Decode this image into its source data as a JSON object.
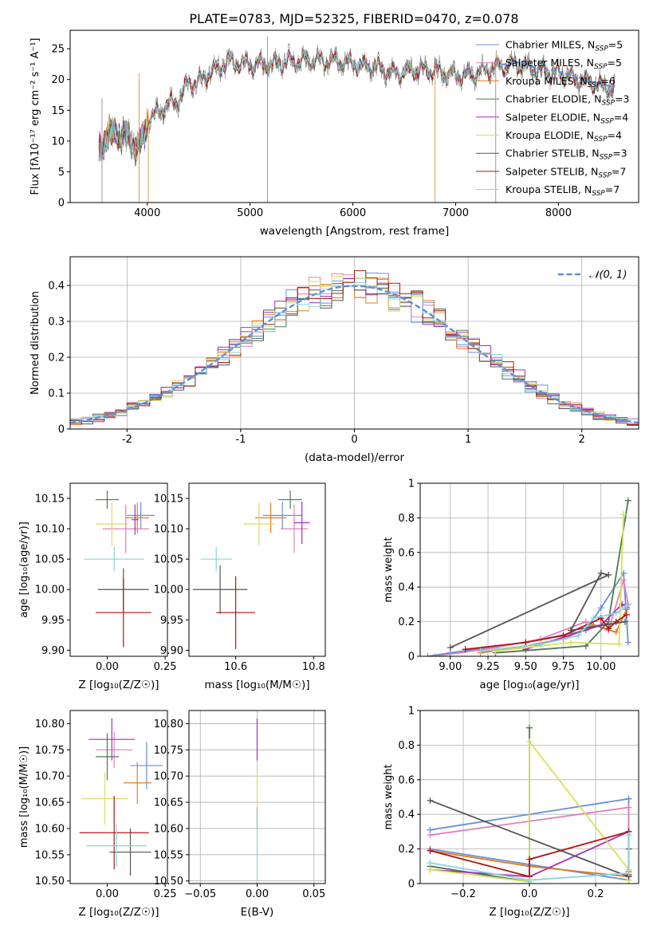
{
  "figure_title": "PLATE=0783, MJD=52325, FIBERID=0470, z=0.078",
  "colors": {
    "chabrier_miles": "#6a8fd8",
    "salpeter_miles": "#e07fb8",
    "kroupa_miles": "#e37d1e",
    "chabrier_elodie": "#4f7a50",
    "salpeter_elodie": "#a62fbe",
    "kroupa_elodie": "#d9e05a",
    "chabrier_stelib": "#555555",
    "salpeter_stelib": "#b01515",
    "kroupa_stelib": "#88d5dd",
    "data_spectrum": "#808080",
    "normal_curve": "#5f8fd8"
  },
  "chart_data": [
    {
      "id": "spectrum",
      "type": "line",
      "title": "PLATE=0783, MJD=52325, FIBERID=0470, z=0.078",
      "xlabel": "wavelength [Angstrom, rest frame]",
      "ylabel": "Flux [fλ10⁻¹⁷ erg cm⁻² s⁻¹ A⁻¹]",
      "xlim": [
        3250,
        8780
      ],
      "ylim": [
        0,
        28
      ],
      "xticks": [
        4000,
        5000,
        6000,
        7000,
        8000
      ],
      "yticks": [
        0,
        5,
        10,
        15,
        20,
        25
      ],
      "legend_position": "top-right",
      "legend": [
        "Chabrier MILES, NSSP=5",
        "Salpeter MILES, NSSP=5",
        "Kroupa MILES, NSSP=6",
        "Chabrier ELODIE, NSSP=3",
        "Salpeter ELODIE, NSSP=4",
        "Kroupa ELODIE, NSSP=4",
        "Chabrier STELIB, NSSP=3",
        "Salpeter STELIB, NSSP=7",
        "Kroupa STELIB, NSSP=7"
      ],
      "continuum": {
        "x": [
          3530,
          3600,
          3700,
          3800,
          3900,
          3950,
          4000,
          4100,
          4200,
          4300,
          4400,
          4500,
          4600,
          4700,
          4800,
          4900,
          5000,
          5200,
          5400,
          5600,
          5800,
          6000,
          6200,
          6400,
          6600,
          6800,
          7000,
          7200,
          7400,
          7600,
          7800,
          8000,
          8200,
          8400,
          8550
        ],
        "y": [
          8.5,
          10.5,
          11.5,
          10.5,
          9.0,
          10.0,
          13.5,
          14.5,
          16.0,
          16.5,
          19.5,
          19.5,
          21.0,
          22.0,
          23.0,
          22.5,
          22.5,
          22.5,
          23.0,
          23.0,
          23.0,
          22.5,
          22.0,
          21.0,
          21.5,
          21.5,
          20.5,
          21.0,
          22.0,
          22.5,
          21.5,
          21.0,
          20.0,
          19.0,
          18.5
        ]
      }
    },
    {
      "id": "residuals",
      "type": "step",
      "xlabel": "(data-model)/error",
      "ylabel": "Normed distribution",
      "xlim": [
        -2.5,
        2.5
      ],
      "ylim": [
        0,
        0.48
      ],
      "xticks": [
        -2,
        -1,
        0,
        1,
        2
      ],
      "yticks": [
        0.0,
        0.1,
        0.2,
        0.3,
        0.4
      ],
      "legend_position": "top-right",
      "legend": [
        "𝒩(0, 1)"
      ],
      "grid": true,
      "bin_width": 0.1
    },
    {
      "id": "age_vs_Z",
      "type": "errorbar",
      "xlabel": "Z [log₁₀(Z/Z☉)]",
      "ylabel": "age  [log₁₀(age/yr)]",
      "xlim": [
        -0.16,
        0.26
      ],
      "ylim": [
        9.89,
        10.175
      ],
      "xticks": [
        0.0,
        0.25
      ],
      "xticklabels": [
        "0.00",
        "0.25"
      ],
      "yticks": [
        9.9,
        9.95,
        10.0,
        10.05,
        10.1,
        10.15
      ],
      "yticklabels": [
        "9.90",
        "9.95",
        "10.00",
        "10.05",
        "10.10",
        "10.15"
      ],
      "points": [
        {
          "model": "chabrier_miles",
          "x": 0.145,
          "xerr": 0.06,
          "y": 10.122,
          "yerr": 0.022
        },
        {
          "model": "salpeter_miles",
          "x": 0.08,
          "xerr": 0.1,
          "y": 10.1,
          "yerr": 0.04
        },
        {
          "model": "kroupa_miles",
          "x": 0.13,
          "xerr": 0.05,
          "y": 10.118,
          "yerr": 0.025
        },
        {
          "model": "chabrier_elodie",
          "x": 0.0,
          "xerr": 0.05,
          "y": 10.148,
          "yerr": 0.015
        },
        {
          "model": "salpeter_elodie",
          "x": 0.12,
          "xerr": 0.015,
          "y": 10.115,
          "yerr": 0.025
        },
        {
          "model": "kroupa_elodie",
          "x": 0.02,
          "xerr": 0.07,
          "y": 10.108,
          "yerr": 0.035
        },
        {
          "model": "chabrier_stelib",
          "x": 0.07,
          "xerr": 0.11,
          "y": 10.0,
          "yerr": 0.035
        },
        {
          "model": "salpeter_stelib",
          "x": 0.07,
          "xerr": 0.12,
          "y": 9.962,
          "yerr": 0.057
        },
        {
          "model": "kroupa_stelib",
          "x": 0.03,
          "xerr": 0.13,
          "y": 10.05,
          "yerr": 0.02
        }
      ]
    },
    {
      "id": "age_vs_mass",
      "type": "errorbar",
      "xlabel": "mass [log₁₀(M/M☉)]",
      "xlim": [
        10.48,
        10.83
      ],
      "ylim": [
        9.89,
        10.175
      ],
      "xticks": [
        10.6,
        10.8
      ],
      "xticklabels": [
        "10.6",
        "10.8"
      ],
      "yticks": [
        9.9,
        9.95,
        10.0,
        10.05,
        10.1,
        10.15
      ],
      "yticklabels": [
        "9.90",
        "9.95",
        "10.00",
        "10.05",
        "10.10",
        "10.15"
      ],
      "points": [
        {
          "model": "chabrier_miles",
          "x": 10.72,
          "xerr": 0.05,
          "y": 10.122,
          "yerr": 0.022
        },
        {
          "model": "salpeter_miles",
          "x": 10.75,
          "xerr": 0.035,
          "y": 10.1,
          "yerr": 0.04
        },
        {
          "model": "kroupa_miles",
          "x": 10.69,
          "xerr": 0.04,
          "y": 10.118,
          "yerr": 0.025
        },
        {
          "model": "chabrier_elodie",
          "x": 10.74,
          "xerr": 0.03,
          "y": 10.148,
          "yerr": 0.015
        },
        {
          "model": "salpeter_elodie",
          "x": 10.77,
          "xerr": 0.02,
          "y": 10.11,
          "yerr": 0.035
        },
        {
          "model": "kroupa_elodie",
          "x": 10.66,
          "xerr": 0.04,
          "y": 10.108,
          "yerr": 0.035
        },
        {
          "model": "chabrier_stelib",
          "x": 10.56,
          "xerr": 0.07,
          "y": 10.0,
          "yerr": 0.04
        },
        {
          "model": "salpeter_stelib",
          "x": 10.6,
          "xerr": 0.05,
          "y": 9.962,
          "yerr": 0.06
        },
        {
          "model": "kroupa_stelib",
          "x": 10.55,
          "xerr": 0.04,
          "y": 10.05,
          "yerr": 0.02
        }
      ]
    },
    {
      "id": "weight_vs_age",
      "type": "line",
      "xlabel": "age  [log₁₀(age/yr)]",
      "ylabel": "mass weight",
      "xlim": [
        8.8,
        10.25
      ],
      "ylim": [
        0,
        1.0
      ],
      "xticks": [
        9.0,
        9.25,
        9.5,
        9.75,
        10.0
      ],
      "xticklabels": [
        "9.00",
        "9.25",
        "9.50",
        "9.75",
        "10.00"
      ],
      "yticks": [
        0.0,
        0.2,
        0.4,
        0.6,
        0.8,
        1.0
      ],
      "grid": true,
      "series": [
        {
          "model": "chabrier_miles",
          "x": [
            8.85,
            9.0,
            9.5,
            9.9,
            10.0,
            10.15,
            10.18
          ],
          "y": [
            0.0,
            0.02,
            0.08,
            0.15,
            0.28,
            0.48,
            0.08
          ]
        },
        {
          "model": "salpeter_miles",
          "x": [
            8.9,
            9.3,
            9.6,
            9.9,
            10.05,
            10.15,
            10.18
          ],
          "y": [
            0.0,
            0.05,
            0.1,
            0.2,
            0.15,
            0.44,
            0.3
          ]
        },
        {
          "model": "kroupa_miles",
          "x": [
            9.2,
            9.5,
            9.75,
            9.95,
            10.1,
            10.17
          ],
          "y": [
            0.02,
            0.06,
            0.1,
            0.18,
            0.14,
            0.27
          ]
        },
        {
          "model": "chabrier_elodie",
          "x": [
            9.3,
            9.9,
            10.05,
            10.18
          ],
          "y": [
            0.02,
            0.06,
            0.2,
            0.9
          ]
        },
        {
          "model": "salpeter_elodie",
          "x": [
            9.5,
            10.0,
            10.14,
            10.17
          ],
          "y": [
            0.04,
            0.18,
            0.3,
            0.28
          ]
        },
        {
          "model": "kroupa_elodie",
          "x": [
            9.3,
            9.8,
            10.12,
            10.15
          ],
          "y": [
            0.03,
            0.08,
            0.07,
            0.82
          ]
        },
        {
          "model": "chabrier_stelib",
          "x": [
            9.0,
            10.05,
            10.0,
            9.8,
            10.16
          ],
          "y": [
            0.05,
            0.47,
            0.48,
            0.15,
            0.2
          ]
        },
        {
          "model": "salpeter_stelib",
          "x": [
            9.1,
            9.5,
            9.75,
            10.0,
            10.05,
            10.1,
            10.17
          ],
          "y": [
            0.04,
            0.08,
            0.12,
            0.22,
            0.16,
            0.2,
            0.24
          ]
        },
        {
          "model": "kroupa_stelib",
          "x": [
            9.2,
            9.6,
            9.85,
            9.95,
            10.1,
            10.17
          ],
          "y": [
            0.03,
            0.07,
            0.12,
            0.22,
            0.25,
            0.29
          ]
        }
      ]
    },
    {
      "id": "mass_vs_Z",
      "type": "errorbar",
      "xlabel": "Z [log₁₀(Z/Z☉)]",
      "ylabel": "mass [log₁₀(M/M☉)]",
      "xlim": [
        -0.16,
        0.26
      ],
      "ylim": [
        10.495,
        10.825
      ],
      "xticks": [
        0.0,
        0.25
      ],
      "xticklabels": [
        "0.00",
        "0.25"
      ],
      "yticks": [
        10.5,
        10.55,
        10.6,
        10.65,
        10.7,
        10.75,
        10.8
      ],
      "yticklabels": [
        "10.50",
        "10.55",
        "10.60",
        "10.65",
        "10.70",
        "10.75",
        "10.80"
      ],
      "points": [
        {
          "model": "chabrier_miles",
          "x": 0.17,
          "xerr": 0.07,
          "y": 10.72,
          "yerr": 0.045
        },
        {
          "model": "salpeter_miles",
          "x": 0.03,
          "xerr": 0.08,
          "y": 10.75,
          "yerr": 0.035
        },
        {
          "model": "kroupa_miles",
          "x": 0.13,
          "xerr": 0.06,
          "y": 10.687,
          "yerr": 0.04
        },
        {
          "model": "chabrier_elodie",
          "x": 0.0,
          "xerr": 0.05,
          "y": 10.737,
          "yerr": 0.045
        },
        {
          "model": "salpeter_elodie",
          "x": 0.02,
          "xerr": 0.1,
          "y": 10.77,
          "yerr": 0.04
        },
        {
          "model": "kroupa_elodie",
          "x": -0.01,
          "xerr": 0.1,
          "y": 10.657,
          "yerr": 0.05
        },
        {
          "model": "chabrier_stelib",
          "x": 0.1,
          "xerr": 0.09,
          "y": 10.555,
          "yerr": 0.045
        },
        {
          "model": "salpeter_stelib",
          "x": 0.03,
          "xerr": 0.15,
          "y": 10.592,
          "yerr": 0.07
        },
        {
          "model": "kroupa_stelib",
          "x": 0.04,
          "xerr": 0.13,
          "y": 10.567,
          "yerr": 0.04
        }
      ]
    },
    {
      "id": "mass_vs_EBV",
      "type": "errorbar",
      "xlabel": "E(B-V)",
      "xlim": [
        -0.06,
        0.06
      ],
      "ylim": [
        10.495,
        10.825
      ],
      "xticks": [
        -0.05,
        0.0,
        0.05
      ],
      "xticklabels": [
        "−0.05",
        "0.00",
        "0.05"
      ],
      "yticks": [
        10.5,
        10.55,
        10.6,
        10.65,
        10.7,
        10.75,
        10.8
      ],
      "yticklabels": [
        "10.50",
        "10.55",
        "10.60",
        "10.65",
        "10.70",
        "10.75",
        "10.80"
      ],
      "grid": true,
      "points": [
        {
          "model": "salpeter_elodie",
          "x": 0.0,
          "xerr": 0.0,
          "y": 10.77,
          "yerr": 0.04
        },
        {
          "model": "kroupa_elodie",
          "x": 0.0,
          "xerr": 0.0,
          "y": 10.66,
          "yerr": 0.05
        },
        {
          "model": "salpeter_stelib",
          "x": 0.0,
          "xerr": 0.0,
          "y": 10.62,
          "yerr": 0.02
        },
        {
          "model": "kroupa_stelib",
          "x": 0.0,
          "xerr": 0.0,
          "y": 10.57,
          "yerr": 0.07
        }
      ]
    },
    {
      "id": "weight_vs_Z",
      "type": "line",
      "xlabel": "Z [log₁₀(Z/Z☉)]",
      "ylabel": "mass weight",
      "xlim": [
        -0.33,
        0.33
      ],
      "ylim": [
        0,
        1.0
      ],
      "xticks": [
        -0.2,
        0.0,
        0.2
      ],
      "xticklabels": [
        "−0.2",
        "0.0",
        "0.2"
      ],
      "yticks": [
        0.0,
        0.2,
        0.4,
        0.6,
        0.8,
        1.0
      ],
      "grid": true,
      "series": [
        {
          "model": "chabrier_miles",
          "x": [
            -0.3,
            0.3,
            0.3,
            -0.3
          ],
          "y": [
            0.31,
            0.49,
            0.02,
            0.2
          ]
        },
        {
          "model": "salpeter_miles",
          "x": [
            -0.3,
            0.3,
            0.3
          ],
          "y": [
            0.28,
            0.44,
            0.02
          ]
        },
        {
          "model": "kroupa_miles",
          "x": [
            -0.3,
            0.0,
            0.3,
            0.3
          ],
          "y": [
            0.19,
            0.1,
            0.04,
            0.07
          ]
        },
        {
          "model": "chabrier_elodie",
          "x": [
            -0.3,
            0.0,
            0.0
          ],
          "y": [
            0.1,
            0.01,
            0.9
          ]
        },
        {
          "model": "salpeter_elodie",
          "x": [
            -0.3,
            0.0,
            0.3
          ],
          "y": [
            0.08,
            0.04,
            0.3
          ]
        },
        {
          "model": "kroupa_elodie",
          "x": [
            -0.3,
            0.0,
            0.0,
            0.3,
            0.3
          ],
          "y": [
            0.08,
            0.01,
            0.82,
            0.08,
            0.02
          ]
        },
        {
          "model": "chabrier_stelib",
          "x": [
            -0.3,
            0.3,
            0.3
          ],
          "y": [
            0.48,
            0.04,
            0.2
          ]
        },
        {
          "model": "salpeter_stelib",
          "x": [
            -0.3,
            0.0,
            0.0,
            0.3,
            0.3
          ],
          "y": [
            0.19,
            0.04,
            0.14,
            0.3,
            0.05
          ]
        },
        {
          "model": "kroupa_stelib",
          "x": [
            -0.3,
            0.0,
            0.3,
            0.3
          ],
          "y": [
            0.12,
            0.02,
            0.06,
            0.28
          ]
        }
      ]
    }
  ]
}
